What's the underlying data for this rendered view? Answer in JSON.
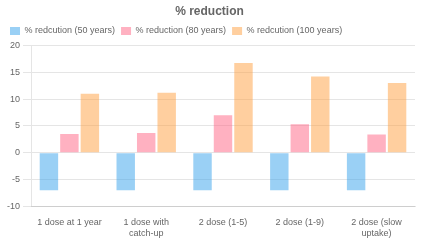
{
  "chart_data": {
    "type": "bar",
    "title": "% reduction",
    "categories": [
      "1 dose at 1 year",
      "1 dose with\ncatch-up",
      "2 dose (1-5)",
      "2 dose (1-9)",
      "2 dose (slow\nuptake)"
    ],
    "series": [
      {
        "name": "% redcution (50 years)",
        "values": [
          -7,
          -7,
          -7,
          -7,
          -7
        ]
      },
      {
        "name": "% reduction (80 years)",
        "values": [
          3.5,
          3.7,
          7.0,
          5.3,
          3.4
        ]
      },
      {
        "name": "% redcution (100 years)",
        "values": [
          11.0,
          11.2,
          16.7,
          14.2,
          13.0
        ]
      }
    ],
    "ylim": [
      -10,
      20
    ],
    "yticks": [
      -10,
      -5,
      0,
      5,
      10,
      15,
      20
    ],
    "grid": true,
    "legend": "upper left"
  }
}
